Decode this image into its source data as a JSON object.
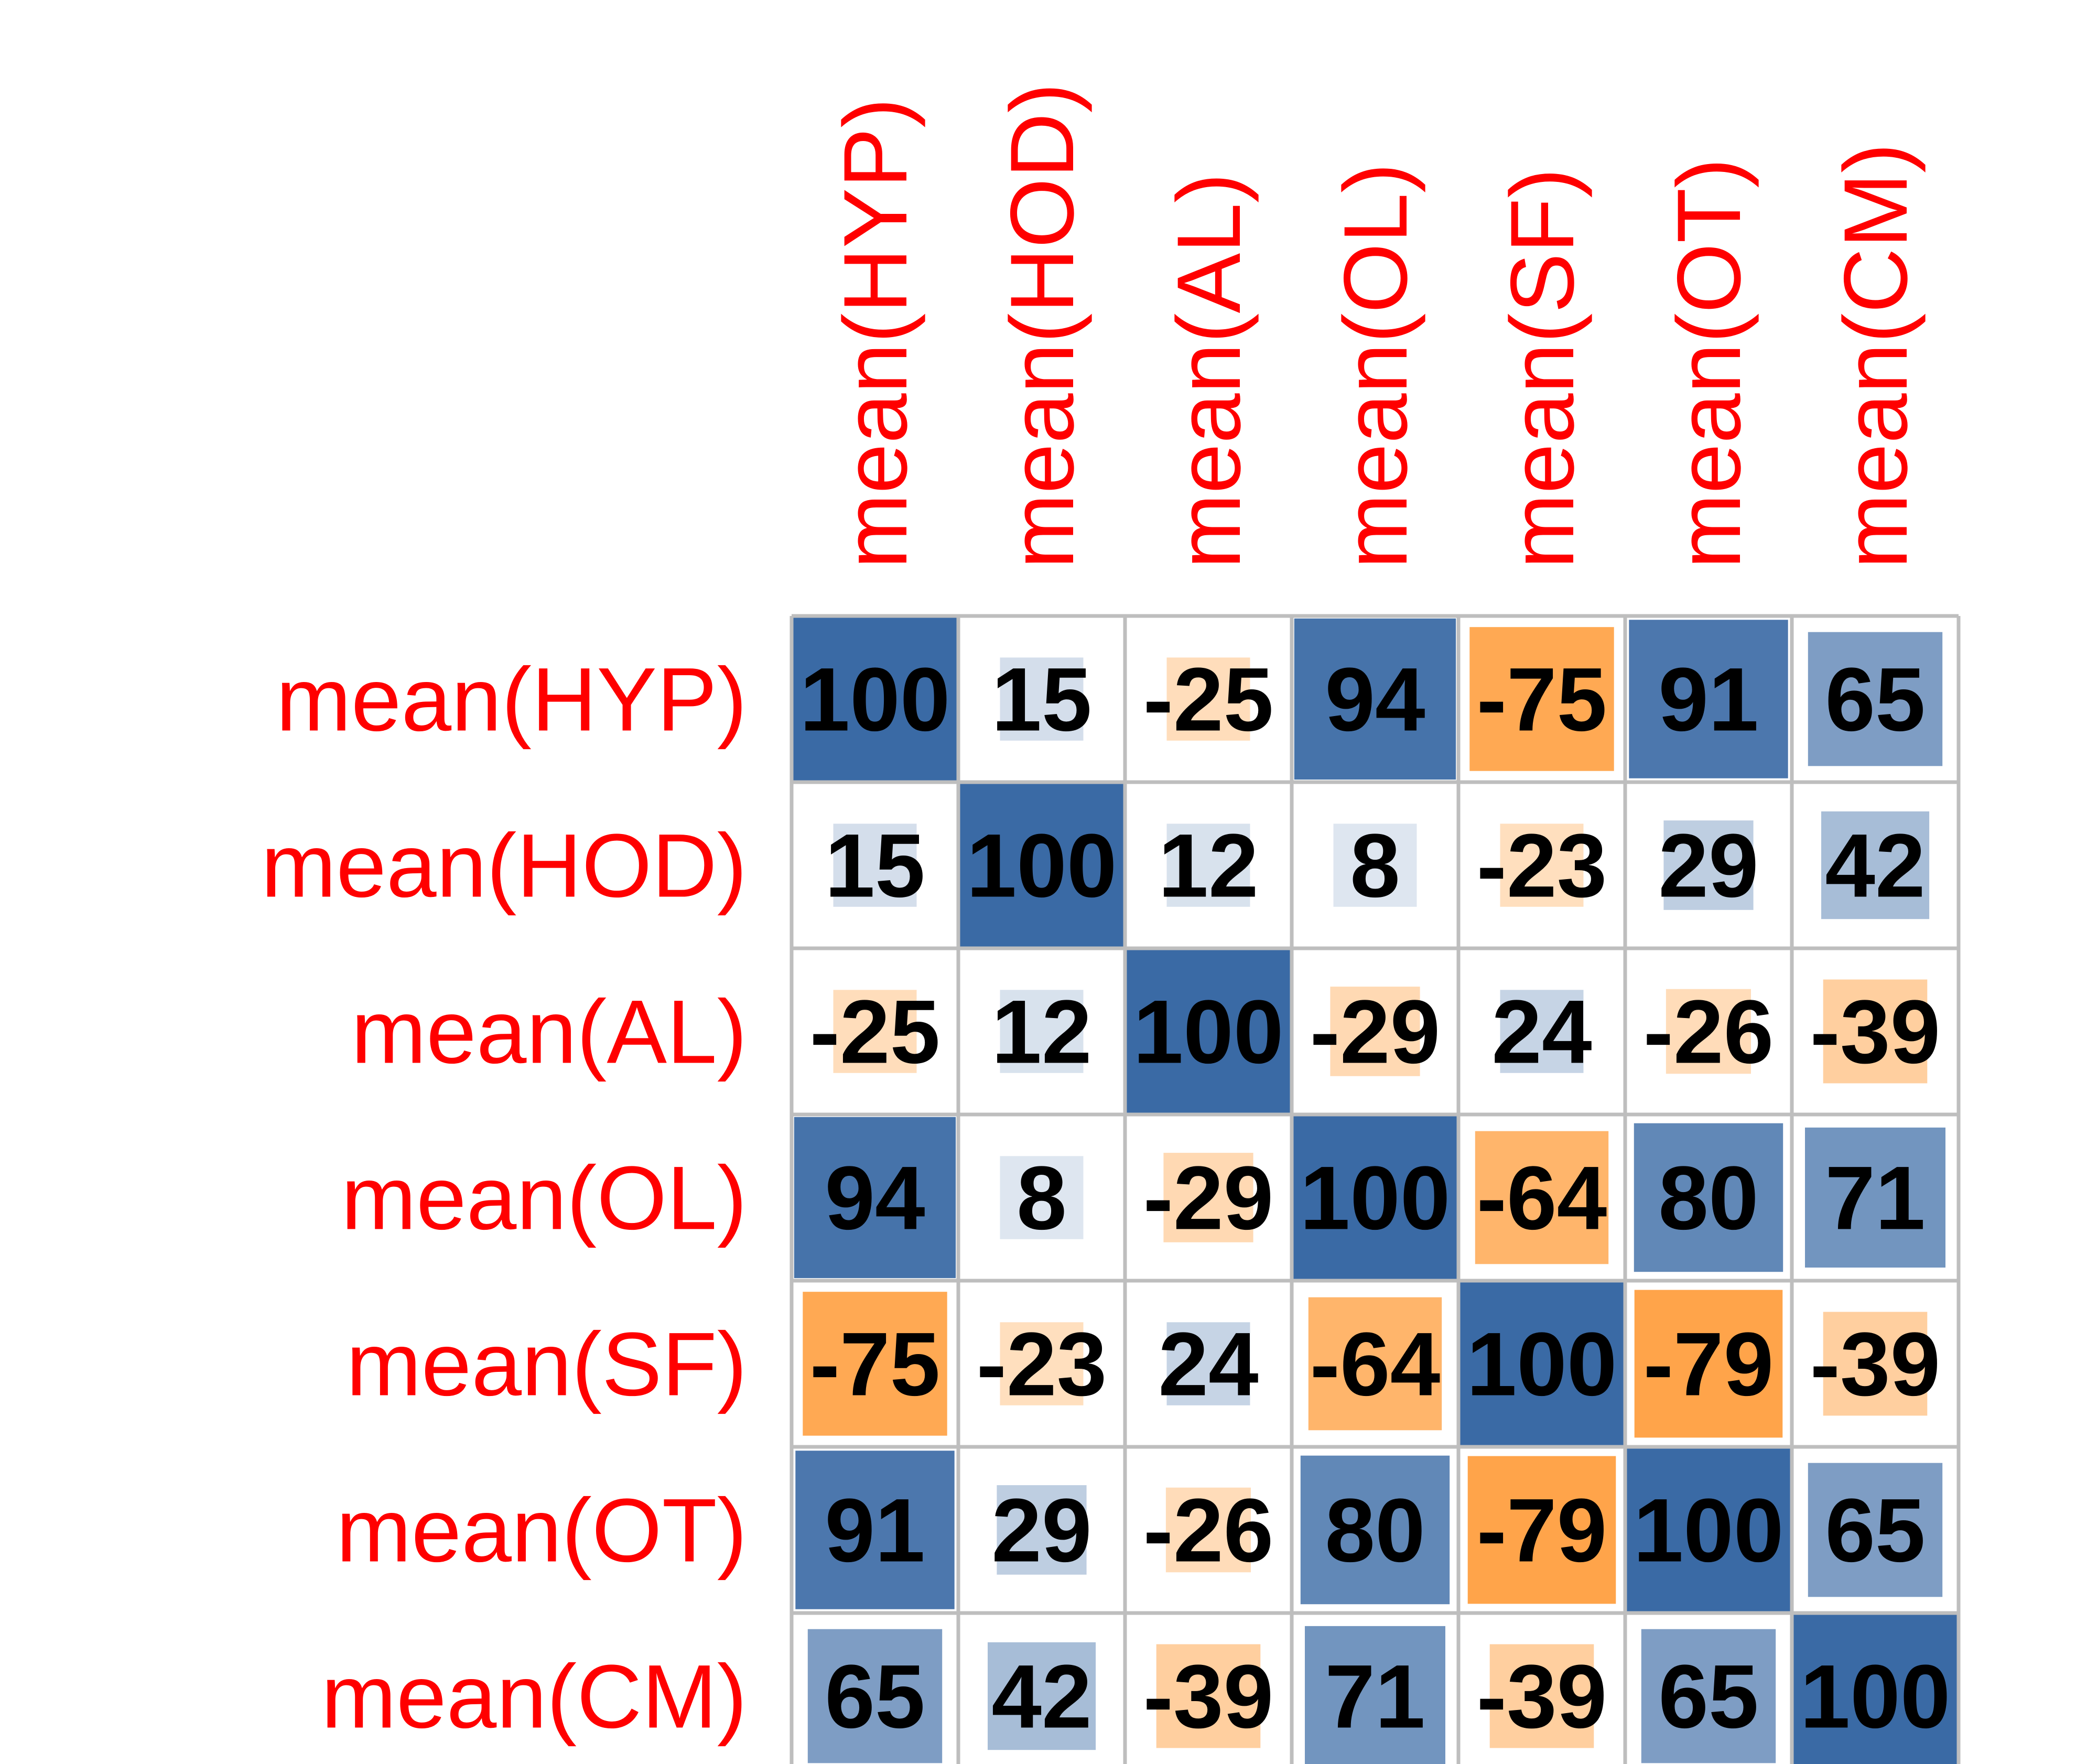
{
  "chart_data": {
    "type": "heatmap",
    "row_labels": [
      "mean(HYP)",
      "mean(HOD)",
      "mean(AL)",
      "mean(OL)",
      "mean(SF)",
      "mean(OT)",
      "mean(CM)"
    ],
    "col_labels": [
      "mean(HYP)",
      "mean(HOD)",
      "mean(AL)",
      "mean(OL)",
      "mean(SF)",
      "mean(OT)",
      "mean(CM)"
    ],
    "values": [
      [
        100,
        15,
        -25,
        94,
        -75,
        91,
        65
      ],
      [
        15,
        100,
        12,
        8,
        -23,
        29,
        42
      ],
      [
        -25,
        12,
        100,
        -29,
        24,
        -26,
        -39
      ],
      [
        94,
        8,
        -29,
        100,
        -64,
        80,
        71
      ],
      [
        -75,
        -23,
        24,
        -64,
        100,
        -79,
        -39
      ],
      [
        91,
        29,
        -26,
        80,
        -79,
        100,
        65
      ],
      [
        65,
        42,
        -39,
        71,
        -39,
        65,
        100
      ]
    ],
    "value_range": [
      -100,
      100
    ],
    "colors": {
      "positive": "#3a6aa5",
      "negative": "#ff8c1a",
      "grid": "#bebebe",
      "label": "#ff0000",
      "text": "#000000"
    },
    "grid": true,
    "legend": "none"
  }
}
